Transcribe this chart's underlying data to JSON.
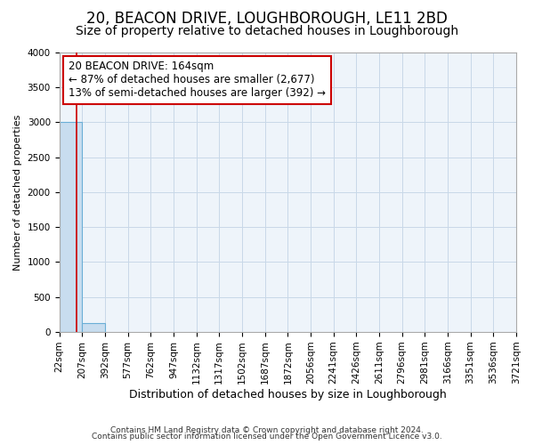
{
  "title1": "20, BEACON DRIVE, LOUGHBOROUGH, LE11 2BD",
  "title2": "Size of property relative to detached houses in Loughborough",
  "xlabel": "Distribution of detached houses by size in Loughborough",
  "ylabel": "Number of detached properties",
  "footnote1": "Contains HM Land Registry data © Crown copyright and database right 2024.",
  "footnote2": "Contains public sector information licensed under the Open Government Licence v3.0.",
  "bar_edges": [
    22,
    207,
    392,
    577,
    762,
    947,
    1132,
    1317,
    1502,
    1687,
    1872,
    2056,
    2241,
    2426,
    2611,
    2796,
    2981,
    3166,
    3351,
    3536,
    3721
  ],
  "bar_heights": [
    3000,
    130,
    0,
    0,
    0,
    0,
    0,
    0,
    0,
    0,
    0,
    0,
    0,
    0,
    0,
    0,
    0,
    0,
    0,
    0
  ],
  "bar_color": "#c8ddef",
  "bar_edge_color": "#6aaed6",
  "property_line_x": 164,
  "property_line_color": "#cc0000",
  "ylim": [
    0,
    4000
  ],
  "yticks": [
    0,
    500,
    1000,
    1500,
    2000,
    2500,
    3000,
    3500,
    4000
  ],
  "annotation_line1": "20 BEACON DRIVE: 164sqm",
  "annotation_line2": "← 87% of detached houses are smaller (2,677)",
  "annotation_line3": "13% of semi-detached houses are larger (392) →",
  "annotation_box_color": "#cc0000",
  "grid_color": "#c8d8e8",
  "grid_bg_color": "#eef4fa",
  "background_color": "#ffffff",
  "title1_fontsize": 12,
  "title2_fontsize": 10,
  "xlabel_fontsize": 9,
  "ylabel_fontsize": 8,
  "tick_fontsize": 7.5,
  "annotation_fontsize": 8.5,
  "footnote_fontsize": 6.5
}
